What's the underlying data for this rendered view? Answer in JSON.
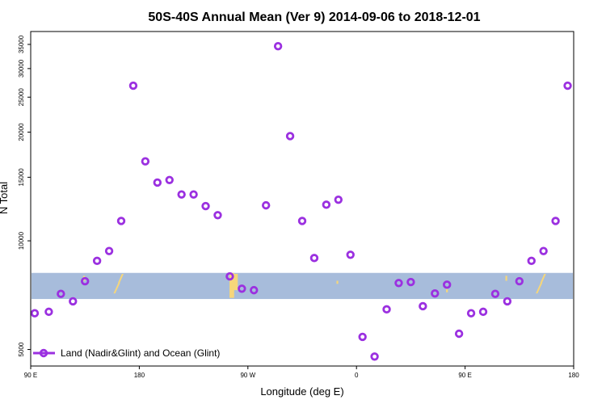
{
  "chart_data": {
    "type": "scatter",
    "title": "50S-40S Annual Mean (Ver 9)   2014-09-06 to 2018-12-01",
    "xlabel": "Longitude (deg E)",
    "ylabel": "N Total",
    "x_scale": "linear",
    "y_scale": "log",
    "xlim": [
      -90,
      180
    ],
    "ylim": [
      4500,
      38000
    ],
    "x_ticks": [
      {
        "value": -90,
        "label": "90 E"
      },
      {
        "value": -36,
        "label": "180"
      },
      {
        "value": 18,
        "label": "90 W"
      },
      {
        "value": 72,
        "label": "0"
      },
      {
        "value": 126,
        "label": "90 E"
      },
      {
        "value": 180,
        "label": "180"
      }
    ],
    "y_ticks": [
      {
        "value": 5000,
        "label": "5000"
      },
      {
        "value": 10000,
        "label": "10000"
      },
      {
        "value": 15000,
        "label": "15000"
      },
      {
        "value": 20000,
        "label": "20000"
      },
      {
        "value": 25000,
        "label": "25000"
      },
      {
        "value": 30000,
        "label": "30000"
      },
      {
        "value": 35000,
        "label": "35000"
      }
    ],
    "band": {
      "y_low": 6900,
      "y_high": 8150,
      "color": "#a7bcdb"
    },
    "land_color": "#f6d67a",
    "series": [
      {
        "name": "Land (Nadir&Glint) and Ocean (Glint)",
        "color": "#9b30e0",
        "marker": "open-circle",
        "x": [
          -88,
          -81,
          -75,
          -69,
          -63,
          -57,
          -51,
          -45,
          -39,
          -33,
          -27,
          -21,
          -15,
          -9,
          -3,
          3,
          9,
          15,
          21,
          27,
          33,
          39,
          45,
          51,
          57,
          63,
          69,
          75,
          81,
          87,
          93,
          99,
          105,
          111,
          117,
          123,
          129,
          135,
          141,
          147,
          153,
          159,
          165,
          171,
          177
        ],
        "y": [
          6300,
          6360,
          7130,
          6800,
          7730,
          8800,
          9370,
          11350,
          26900,
          16600,
          14500,
          14740,
          13440,
          13440,
          12480,
          11780,
          7970,
          7370,
          7300,
          12540,
          34600,
          19500,
          11350,
          8960,
          12590,
          13000,
          9150,
          5420,
          4780,
          6460,
          7640,
          7690,
          6590,
          7150,
          7560,
          5530,
          6300,
          6360,
          7130,
          6800,
          7730,
          8800,
          9370,
          11350,
          26900
        ]
      }
    ]
  },
  "legend": {
    "label": "Land (Nadir&Glint) and Ocean (Glint)"
  }
}
